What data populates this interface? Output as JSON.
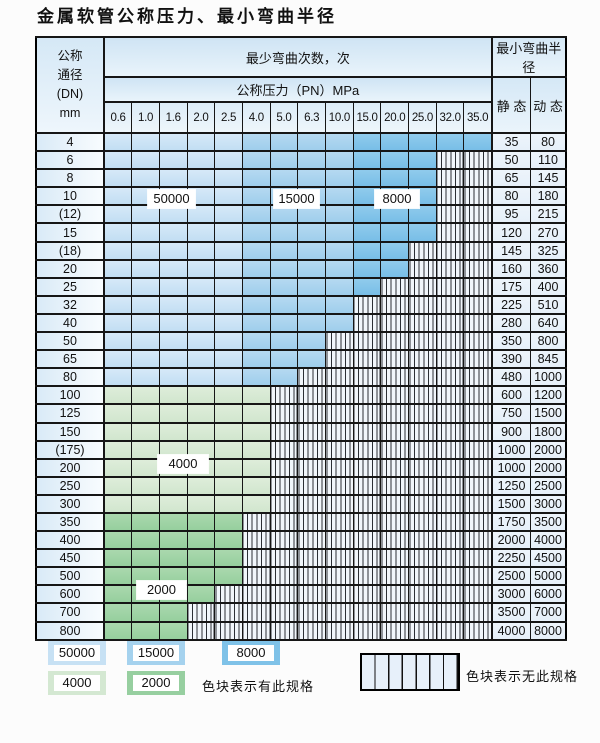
{
  "title": "金属软管公称压力、最小弯曲半径",
  "table": {
    "header": {
      "dn_lines": [
        "公称",
        "通径",
        "(DN)",
        "mm"
      ],
      "bend_cycles_title": "最少弯曲次数，次",
      "pressure_title": "公称压力（PN）MPa",
      "radius_title": "最小弯曲半径",
      "static_label": "静 态",
      "dynamic_label": "动 态",
      "pn_columns": [
        "0.6",
        "1.0",
        "1.6",
        "2.0",
        "2.5",
        "4.0",
        "5.0",
        "6.3",
        "10.0",
        "15.0",
        "20.0",
        "25.0",
        "32.0",
        "35.0"
      ]
    }
  },
  "overlay_labels": [
    {
      "text": "50000"
    },
    {
      "text": "15000"
    },
    {
      "text": "8000"
    },
    {
      "text": "4000"
    },
    {
      "text": "2000"
    }
  ],
  "legend": {
    "items": [
      {
        "label": "50000",
        "color": "#c7e1f4"
      },
      {
        "label": "15000",
        "color": "#a5d2ee"
      },
      {
        "label": "8000",
        "color": "#7fc2e8"
      },
      {
        "label": "4000",
        "color": "#d4e8d2"
      },
      {
        "label": "2000",
        "color": "#97cfa0"
      }
    ],
    "available_text": "色块表示有此规格",
    "unavailable_text": "色块表示无此规格"
  },
  "colors": {
    "bend_50000": "#c7e1f4",
    "bend_15000": "#a5d2ee",
    "bend_8000": "#7fc2e8",
    "bend_4000": "#d4e8d2",
    "bend_2000": "#97cfa0",
    "no_spec_background": "#f1f6fb",
    "grid_line": "#161616"
  },
  "chart_data": {
    "type": "heatmap",
    "title": "金属软管公称压力、最小弯曲半径",
    "x_label": "公称压力（PN）MPa",
    "x": [
      0.6,
      1.0,
      1.6,
      2.0,
      2.5,
      4.0,
      5.0,
      6.3,
      10.0,
      15.0,
      20.0,
      25.0,
      32.0,
      35.0
    ],
    "y_label": "公称通径 (DN) mm",
    "value_key": {
      "L": 50000,
      "M": 15000,
      "D": 8000,
      "G": 4000,
      "E": 2000,
      "X": null
    },
    "value_meaning": "最少弯曲次数，次 (X = 无此规格)",
    "radius_columns": [
      "静 态",
      "动 态"
    ],
    "rows": [
      {
        "dn": "4",
        "pattern": "LLLLLMMMMDDDDD",
        "static": "35",
        "dynamic": "80"
      },
      {
        "dn": "6",
        "pattern": "LLLLLMMMMDDDXX",
        "static": "50",
        "dynamic": "110"
      },
      {
        "dn": "8",
        "pattern": "LLLLLMMMMDDDXX",
        "static": "65",
        "dynamic": "145"
      },
      {
        "dn": "10",
        "pattern": "LLLLLMMMMDDDXX",
        "static": "80",
        "dynamic": "180"
      },
      {
        "dn": "(12)",
        "pattern": "LLLLLMMMMDDDXX",
        "static": "95",
        "dynamic": "215"
      },
      {
        "dn": "15",
        "pattern": "LLLLLMMMMDDDXX",
        "static": "120",
        "dynamic": "270"
      },
      {
        "dn": "(18)",
        "pattern": "LLLLLMMMMDDXXX",
        "static": "145",
        "dynamic": "325"
      },
      {
        "dn": "20",
        "pattern": "LLLLLMMMMDDXXX",
        "static": "160",
        "dynamic": "360"
      },
      {
        "dn": "25",
        "pattern": "LLLLLMMMMDXXXX",
        "static": "175",
        "dynamic": "400"
      },
      {
        "dn": "32",
        "pattern": "LLLLLMMMMXXXXX",
        "static": "225",
        "dynamic": "510"
      },
      {
        "dn": "40",
        "pattern": "LLLLLMMMMXXXXX",
        "static": "280",
        "dynamic": "640"
      },
      {
        "dn": "50",
        "pattern": "LLLLLMMMXXXXXX",
        "static": "350",
        "dynamic": "800"
      },
      {
        "dn": "65",
        "pattern": "LLLLLMMMXXXXXX",
        "static": "390",
        "dynamic": "845"
      },
      {
        "dn": "80",
        "pattern": "LLLLLMMXXXXXXX",
        "static": "480",
        "dynamic": "1000"
      },
      {
        "dn": "100",
        "pattern": "GGGGGGXXXXXXXX",
        "static": "600",
        "dynamic": "1200"
      },
      {
        "dn": "125",
        "pattern": "GGGGGGXXXXXXXX",
        "static": "750",
        "dynamic": "1500"
      },
      {
        "dn": "150",
        "pattern": "GGGGGGXXXXXXXX",
        "static": "900",
        "dynamic": "1800"
      },
      {
        "dn": "(175)",
        "pattern": "GGGGGGXXXXXXXX",
        "static": "1000",
        "dynamic": "2000"
      },
      {
        "dn": "200",
        "pattern": "GGGGGGXXXXXXXX",
        "static": "1000",
        "dynamic": "2000"
      },
      {
        "dn": "250",
        "pattern": "GGGGGGXXXXXXXX",
        "static": "1250",
        "dynamic": "2500"
      },
      {
        "dn": "300",
        "pattern": "GGGGGGXXXXXXXX",
        "static": "1500",
        "dynamic": "3000"
      },
      {
        "dn": "350",
        "pattern": "EEEEEXXXXXXXXX",
        "static": "1750",
        "dynamic": "3500"
      },
      {
        "dn": "400",
        "pattern": "EEEEEXXXXXXXXX",
        "static": "2000",
        "dynamic": "4000"
      },
      {
        "dn": "450",
        "pattern": "EEEEEXXXXXXXXX",
        "static": "2250",
        "dynamic": "4500"
      },
      {
        "dn": "500",
        "pattern": "EEEEEXXXXXXXXX",
        "static": "2500",
        "dynamic": "5000"
      },
      {
        "dn": "600",
        "pattern": "EEEEXXXXXXXXXX",
        "static": "3000",
        "dynamic": "6000"
      },
      {
        "dn": "700",
        "pattern": "EEEXXXXXXXXXXX",
        "static": "3500",
        "dynamic": "7000"
      },
      {
        "dn": "800",
        "pattern": "EEEXXXXXXXXXXX",
        "static": "4000",
        "dynamic": "8000"
      }
    ]
  }
}
